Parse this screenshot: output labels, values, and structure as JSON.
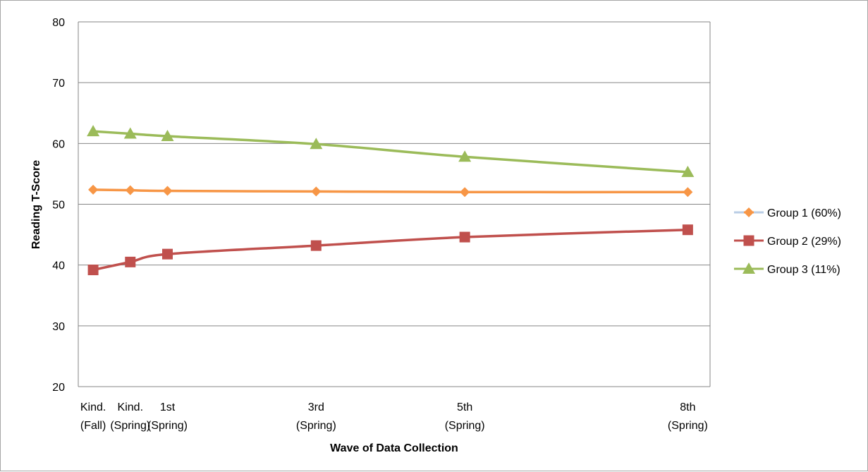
{
  "chart_data": {
    "type": "line",
    "title": "",
    "xlabel": "Wave of Data Collection",
    "ylabel": "Reading T-Score",
    "ylim": [
      20,
      80
    ],
    "yticks": [
      "20",
      "30",
      "40",
      "50",
      "60",
      "70",
      "80"
    ],
    "grid": "horizontal",
    "legend_position": "right",
    "categories": [
      {
        "line1": "Kind.",
        "line2": "(Fall)",
        "x": 0
      },
      {
        "line1": "Kind.",
        "line2": "(Spring)",
        "x": 0.5
      },
      {
        "line1": "1st",
        "line2": "(Spring)",
        "x": 1
      },
      {
        "line1": "3rd",
        "line2": "(Spring)",
        "x": 3
      },
      {
        "line1": "5th",
        "line2": "(Spring)",
        "x": 5
      },
      {
        "line1": "8th",
        "line2": "(Spring)",
        "x": 8
      }
    ],
    "series": [
      {
        "name": "Group 1 (60%)",
        "color": "#f79646",
        "marker": "diamond",
        "values": [
          52.4,
          52.3,
          52.2,
          52.1,
          52.0,
          52.0
        ]
      },
      {
        "name": "Group 2 (29%)",
        "color": "#c0504d",
        "marker": "square",
        "values": [
          39.2,
          40.5,
          41.8,
          43.2,
          44.6,
          45.8
        ]
      },
      {
        "name": "Group 3 (11%)",
        "color": "#9bbb59",
        "marker": "triangle",
        "values": [
          62.0,
          61.6,
          61.2,
          59.9,
          57.8,
          55.3
        ]
      }
    ]
  }
}
